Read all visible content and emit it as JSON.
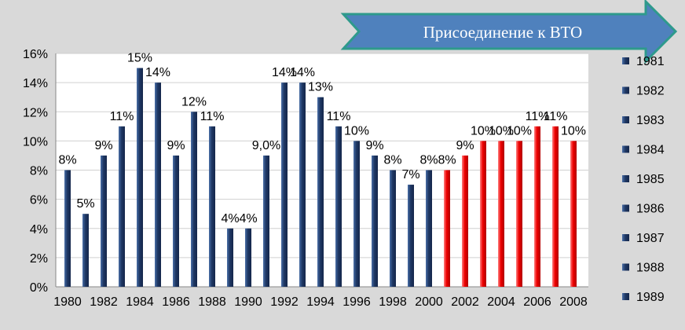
{
  "banner": {
    "label": "Присоединение к ВТО",
    "color": "#4f81bd",
    "border_color": "#2e9a8c"
  },
  "chart_data": {
    "type": "bar",
    "categories": [
      "1980",
      "1981",
      "1982",
      "1983",
      "1984",
      "1985",
      "1986",
      "1987",
      "1988",
      "1989",
      "1990",
      "1991",
      "1992",
      "1993",
      "1994",
      "1995",
      "1996",
      "1997",
      "1998",
      "1999",
      "2000",
      "2001",
      "2002",
      "2003",
      "2004",
      "2005",
      "2006",
      "2007",
      "2008"
    ],
    "values": [
      8,
      5,
      9,
      11,
      15,
      14,
      9,
      12,
      11,
      4,
      4,
      9,
      14,
      14,
      13,
      11,
      10,
      9,
      8,
      7,
      8,
      8,
      9,
      10,
      10,
      10,
      11,
      11,
      10
    ],
    "data_labels": [
      "8%",
      "5%",
      "9%",
      "11%",
      "15%",
      "14%",
      "9%",
      "12%",
      "11%",
      "4%",
      "4%",
      "9,0%",
      "14%",
      "14%",
      "13%",
      "11%",
      "10%",
      "9%",
      "8%",
      "7%",
      "8%",
      "8%",
      "9%",
      "10%",
      "10%",
      "10%",
      "11%",
      "11%",
      "10%"
    ],
    "x_tick_labels": [
      "1980",
      "1982",
      "1984",
      "1986",
      "1988",
      "1990",
      "1992",
      "1994",
      "1996",
      "1998",
      "2000",
      "2002",
      "2004",
      "2006",
      "2008"
    ],
    "y_tick_labels": [
      "0%",
      "2%",
      "4%",
      "6%",
      "8%",
      "10%",
      "12%",
      "14%",
      "16%"
    ],
    "ylim": [
      0,
      16
    ],
    "grid": true,
    "legend_position": "right",
    "legend": [
      "1981",
      "1982",
      "1983",
      "1984",
      "1985",
      "1986",
      "1987",
      "1988",
      "1989"
    ],
    "colors": {
      "blue": "#1f3864",
      "red": "#e00000",
      "grid": "#d0d0d0",
      "plot_bg": "#ffffff"
    },
    "red_from_category": "2001"
  }
}
